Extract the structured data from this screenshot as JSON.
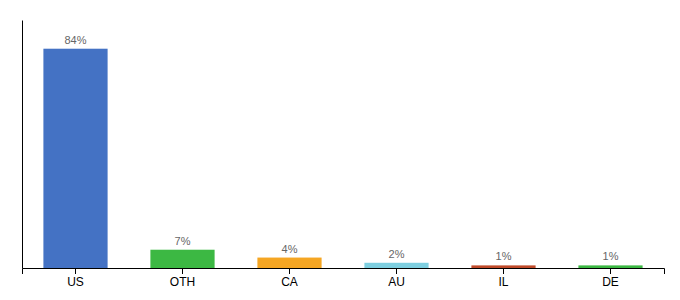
{
  "chart_data": {
    "type": "bar",
    "categories": [
      "US",
      "OTH",
      "CA",
      "AU",
      "IL",
      "DE"
    ],
    "values": [
      84,
      7,
      4,
      2,
      1,
      1
    ],
    "value_labels": [
      "84%",
      "7%",
      "4%",
      "2%",
      "1%",
      "1%"
    ],
    "colors": [
      "#4472c4",
      "#3cb843",
      "#f5a623",
      "#7ecfe0",
      "#c04a2a",
      "#3cb843"
    ],
    "ylim": [
      0,
      95
    ],
    "data_labels": true,
    "tick_labels": "x",
    "grid": false
  }
}
